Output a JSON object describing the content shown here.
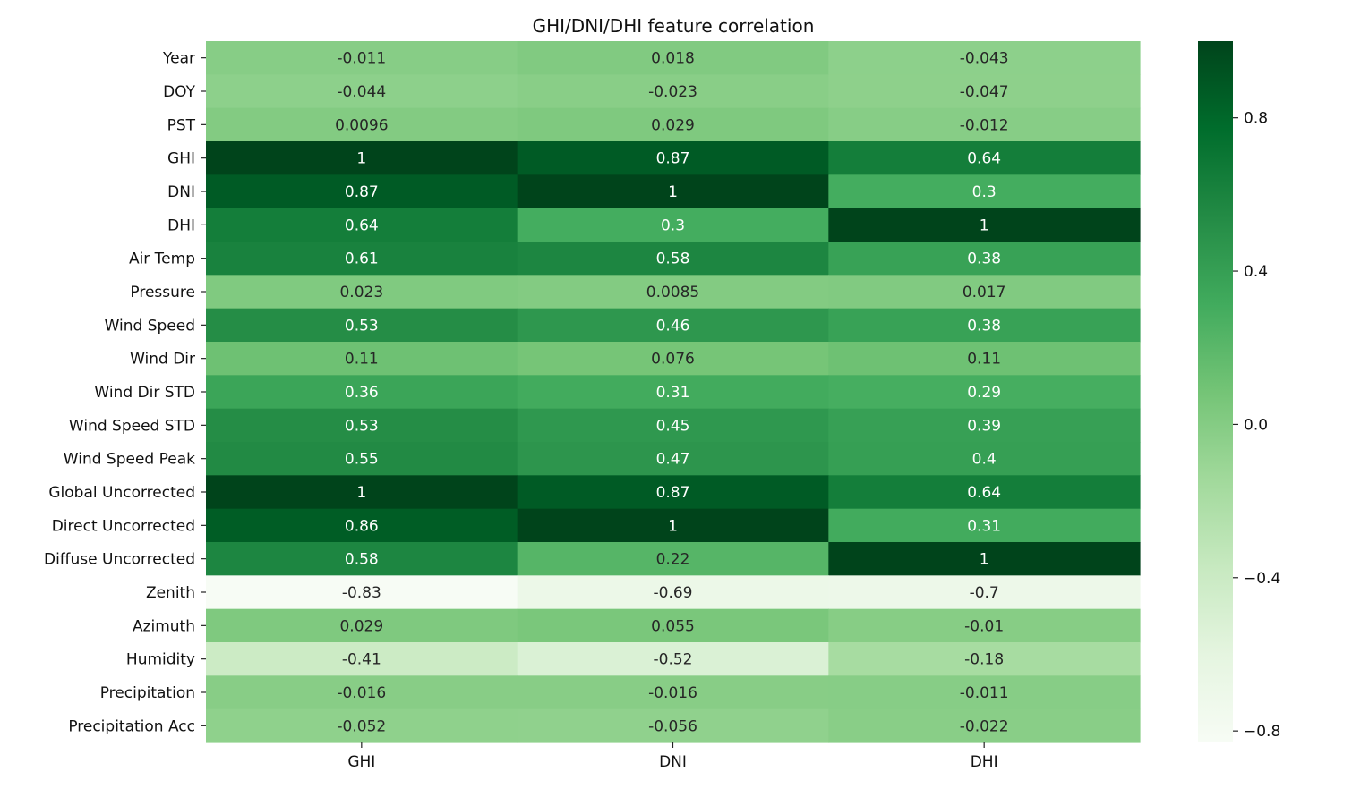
{
  "chart_data": {
    "type": "heatmap",
    "title": "GHI/DNI/DHI feature correlation",
    "columns": [
      "GHI",
      "DNI",
      "DHI"
    ],
    "rows": [
      "Year",
      "DOY",
      "PST",
      "GHI",
      "DNI",
      "DHI",
      "Air Temp",
      "Pressure",
      "Wind Speed",
      "Wind Dir",
      "Wind Dir STD",
      "Wind Speed STD",
      "Wind Speed Peak",
      "Global Uncorrected",
      "Direct Uncorrected",
      "Diffuse Uncorrected",
      "Zenith",
      "Azimuth",
      "Humidity",
      "Precipitation",
      "Precipitation Acc"
    ],
    "values": [
      [
        -0.011,
        0.018,
        -0.043
      ],
      [
        -0.044,
        -0.023,
        -0.047
      ],
      [
        0.0096,
        0.029,
        -0.012
      ],
      [
        1,
        0.87,
        0.64
      ],
      [
        0.87,
        1,
        0.3
      ],
      [
        0.64,
        0.3,
        1
      ],
      [
        0.61,
        0.58,
        0.38
      ],
      [
        0.023,
        0.0085,
        0.017
      ],
      [
        0.53,
        0.46,
        0.38
      ],
      [
        0.11,
        0.076,
        0.11
      ],
      [
        0.36,
        0.31,
        0.29
      ],
      [
        0.53,
        0.45,
        0.39
      ],
      [
        0.55,
        0.47,
        0.4
      ],
      [
        1,
        0.87,
        0.64
      ],
      [
        0.86,
        1,
        0.31
      ],
      [
        0.58,
        0.22,
        1
      ],
      [
        -0.83,
        -0.69,
        -0.7
      ],
      [
        0.029,
        0.055,
        -0.01
      ],
      [
        -0.41,
        -0.52,
        -0.18
      ],
      [
        -0.016,
        -0.016,
        -0.011
      ],
      [
        -0.052,
        -0.056,
        -0.022
      ]
    ],
    "labels": [
      [
        "-0.011",
        "0.018",
        "-0.043"
      ],
      [
        "-0.044",
        "-0.023",
        "-0.047"
      ],
      [
        "0.0096",
        "0.029",
        "-0.012"
      ],
      [
        "1",
        "0.87",
        "0.64"
      ],
      [
        "0.87",
        "1",
        "0.3"
      ],
      [
        "0.64",
        "0.3",
        "1"
      ],
      [
        "0.61",
        "0.58",
        "0.38"
      ],
      [
        "0.023",
        "0.0085",
        "0.017"
      ],
      [
        "0.53",
        "0.46",
        "0.38"
      ],
      [
        "0.11",
        "0.076",
        "0.11"
      ],
      [
        "0.36",
        "0.31",
        "0.29"
      ],
      [
        "0.53",
        "0.45",
        "0.39"
      ],
      [
        "0.55",
        "0.47",
        "0.4"
      ],
      [
        "1",
        "0.87",
        "0.64"
      ],
      [
        "0.86",
        "1",
        "0.31"
      ],
      [
        "0.58",
        "0.22",
        "1"
      ],
      [
        "-0.83",
        "-0.69",
        "-0.7"
      ],
      [
        "0.029",
        "0.055",
        "-0.01"
      ],
      [
        "-0.41",
        "-0.52",
        "-0.18"
      ],
      [
        "-0.016",
        "-0.016",
        "-0.011"
      ],
      [
        "-0.052",
        "-0.056",
        "-0.022"
      ]
    ],
    "colorbar": {
      "colormap": "Greens",
      "range": [
        -0.83,
        1
      ],
      "ticks": [
        0.8,
        0.4,
        0.0,
        -0.4,
        -0.8
      ],
      "tick_labels": [
        "0.8",
        "0.4",
        "0.0",
        "−0.4",
        "−0.8"
      ]
    },
    "grid": false
  }
}
